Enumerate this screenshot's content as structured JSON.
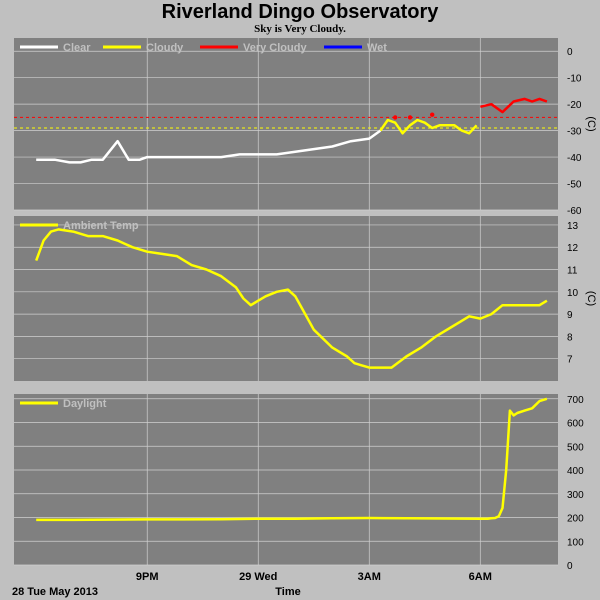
{
  "title": "Riverland Dingo Observatory",
  "subtitle": "Sky is Very Cloudy.",
  "colors": {
    "background": "#c0c0c0",
    "plot_bg": "#808080",
    "grid": "#d0d0d0",
    "clear": "#ffffff",
    "cloudy": "#ffff00",
    "very_cloudy": "#ff0000",
    "wet": "#0000ff",
    "threshold_cloudy": "#ffff00",
    "threshold_very_cloudy": "#ff0000"
  },
  "footer": {
    "date": "28 Tue May 2013",
    "xlabel": "Time"
  },
  "x_ticks": [
    {
      "label": "9PM",
      "hour": 21
    },
    {
      "label": "29 Wed",
      "hour": 24
    },
    {
      "label": "3AM",
      "hour": 27
    },
    {
      "label": "6AM",
      "hour": 30
    }
  ],
  "chart_data": [
    {
      "type": "line",
      "panel": "sky",
      "unit": "(C)",
      "ylim": [
        -60,
        5
      ],
      "yticks": [
        0,
        -10,
        -20,
        -30,
        -40,
        -50,
        -60
      ],
      "legend": [
        "Clear",
        "Cloudy",
        "Very Cloudy",
        "Wet"
      ],
      "thresholds": {
        "very_cloudy": -25,
        "cloudy": -29
      },
      "x_hours": [
        18.0,
        18.5,
        18.9,
        19.2,
        19.5,
        19.8,
        20.2,
        20.5,
        20.8,
        21.0,
        21.5,
        22.0,
        22.5,
        23.0,
        23.5,
        24.0,
        24.5,
        25.0,
        25.5,
        26.0,
        26.5,
        27.0,
        27.3,
        27.5,
        27.7,
        27.9,
        28.1,
        28.3,
        28.5,
        28.7,
        28.9,
        29.1,
        29.3,
        29.5,
        29.7,
        29.9,
        30.0,
        30.3,
        30.6,
        30.9,
        31.2,
        31.4,
        31.6,
        31.8
      ],
      "series": [
        {
          "name": "Clear",
          "values": [
            -41,
            -41,
            -42,
            -42,
            -41,
            -41,
            -34,
            -41,
            -41,
            -40,
            -40,
            -40,
            -40,
            -40,
            -39,
            -39,
            -39,
            -38,
            -37,
            -36,
            -34,
            -33,
            -30,
            null,
            null,
            null,
            null,
            null,
            null,
            null,
            null,
            null,
            null,
            null,
            null,
            null,
            null,
            null,
            null,
            null,
            null,
            null,
            null,
            null
          ]
        },
        {
          "name": "Cloudy",
          "values": [
            null,
            null,
            null,
            null,
            null,
            null,
            null,
            null,
            null,
            null,
            null,
            null,
            null,
            null,
            null,
            null,
            null,
            null,
            null,
            null,
            null,
            null,
            -30,
            -26,
            -27,
            -31,
            -28,
            -26,
            -27,
            -29,
            -28,
            -28,
            -28,
            -30,
            -31,
            -28,
            null,
            null,
            null,
            null,
            null,
            null,
            null,
            null
          ]
        },
        {
          "name": "Very Cloudy",
          "values": [
            null,
            null,
            null,
            null,
            null,
            null,
            null,
            null,
            null,
            null,
            null,
            null,
            null,
            null,
            null,
            null,
            null,
            null,
            null,
            null,
            null,
            null,
            null,
            null,
            -25,
            null,
            -25,
            null,
            null,
            -24,
            null,
            null,
            null,
            null,
            null,
            null,
            -21,
            -20,
            -23,
            -19,
            -18,
            -19,
            -18,
            -19
          ]
        }
      ]
    },
    {
      "type": "line",
      "panel": "ambient",
      "unit": "(C)",
      "ylim": [
        6,
        13.4
      ],
      "yticks": [
        13,
        12,
        11,
        10,
        9,
        8,
        7
      ],
      "legend": [
        "Ambient Temp"
      ],
      "x_hours": [
        18.0,
        18.2,
        18.4,
        18.6,
        19.0,
        19.4,
        19.8,
        20.2,
        20.6,
        21.0,
        21.4,
        21.8,
        22.2,
        22.6,
        23.0,
        23.4,
        23.6,
        23.8,
        24.0,
        24.2,
        24.5,
        24.8,
        25.0,
        25.2,
        25.5,
        26.0,
        26.4,
        26.6,
        26.8,
        27.0,
        27.3,
        27.6,
        28.0,
        28.4,
        28.8,
        29.2,
        29.5,
        29.7,
        30.0,
        30.3,
        30.6,
        31.0,
        31.3,
        31.6,
        31.8
      ],
      "series": [
        {
          "name": "Ambient Temp",
          "values": [
            11.4,
            12.3,
            12.7,
            12.8,
            12.7,
            12.5,
            12.5,
            12.3,
            12.0,
            11.8,
            11.7,
            11.6,
            11.2,
            11.0,
            10.7,
            10.2,
            9.7,
            9.4,
            9.6,
            9.8,
            10.0,
            10.1,
            9.8,
            9.2,
            8.3,
            7.5,
            7.1,
            6.8,
            6.7,
            6.6,
            6.6,
            6.6,
            7.1,
            7.5,
            8.0,
            8.4,
            8.7,
            8.9,
            8.8,
            9.0,
            9.4,
            9.4,
            9.4,
            9.4,
            9.6
          ]
        }
      ]
    },
    {
      "type": "line",
      "panel": "daylight",
      "unit": "",
      "ylim": [
        0,
        720
      ],
      "yticks": [
        700,
        600,
        500,
        400,
        300,
        200,
        100,
        0
      ],
      "legend": [
        "Daylight"
      ],
      "x_hours": [
        18.0,
        19.0,
        20.0,
        21.0,
        22.0,
        23.0,
        24.0,
        25.0,
        26.0,
        27.0,
        28.0,
        29.0,
        30.0,
        30.2,
        30.3,
        30.4,
        30.5,
        30.6,
        30.7,
        30.8,
        30.9,
        31.0,
        31.2,
        31.4,
        31.6,
        31.8
      ],
      "series": [
        {
          "name": "Daylight",
          "values": [
            190,
            190,
            191,
            192,
            192,
            193,
            195,
            195,
            197,
            198,
            197,
            196,
            195,
            195,
            197,
            198,
            205,
            240,
            400,
            650,
            630,
            640,
            650,
            660,
            690,
            700
          ]
        }
      ]
    }
  ]
}
